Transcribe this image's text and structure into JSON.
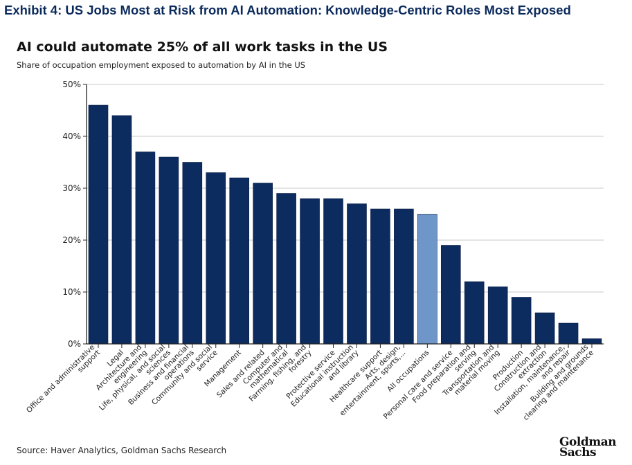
{
  "header": {
    "exhibit_title": "Exhibit 4: US Jobs Most at Risk from AI Automation: Knowledge-Centric Roles Most Exposed"
  },
  "footer": {
    "source": "Source: Haver Analytics, Goldman Sachs Research",
    "logo_text": "Goldman Sachs"
  },
  "colors": {
    "bar": "#0c2b5e",
    "highlight": "#6f96c8",
    "header": "#0b2a5c"
  },
  "chart_data": {
    "type": "bar",
    "title": "AI could automate 25% of all work tasks in the US",
    "subtitle": "Share of occupation employment exposed to automation by AI in the US",
    "ylim": [
      0,
      50
    ],
    "yticks": [
      "0%",
      "10%",
      "20%",
      "30%",
      "40%",
      "50%"
    ],
    "grid": true,
    "highlight_category": "All occupations",
    "categories": [
      [
        "Office and administrative",
        "support"
      ],
      [
        "Legal"
      ],
      [
        "Architecture and",
        "engineering"
      ],
      [
        "Life, physical, and social",
        "sciences"
      ],
      [
        "Business and financial",
        "operations"
      ],
      [
        "Community and social",
        "service"
      ],
      [
        "Management"
      ],
      [
        "Sales and related"
      ],
      [
        "Computer and",
        "mathematical"
      ],
      [
        "Farming, fishing, and",
        "forestry"
      ],
      [
        "Protective service"
      ],
      [
        "Educational instruction",
        "and library"
      ],
      [
        "Healthcare support"
      ],
      [
        "Arts, design,",
        "entertainment, sports,..."
      ],
      [
        "All occupations"
      ],
      [
        "Personal care and service"
      ],
      [
        "Food preparation and",
        "serving"
      ],
      [
        "Transportation and",
        "material moving"
      ],
      [
        "Production"
      ],
      [
        "Construction and",
        "extraction"
      ],
      [
        "Installation, maintenance,",
        "and repair"
      ],
      [
        "Building and grounds",
        "clearing and maintenance"
      ]
    ],
    "values": [
      46,
      44,
      37,
      36,
      35,
      33,
      32,
      31,
      29,
      28,
      28,
      27,
      26,
      26,
      25,
      19,
      12,
      11,
      9,
      6,
      4,
      1
    ]
  }
}
